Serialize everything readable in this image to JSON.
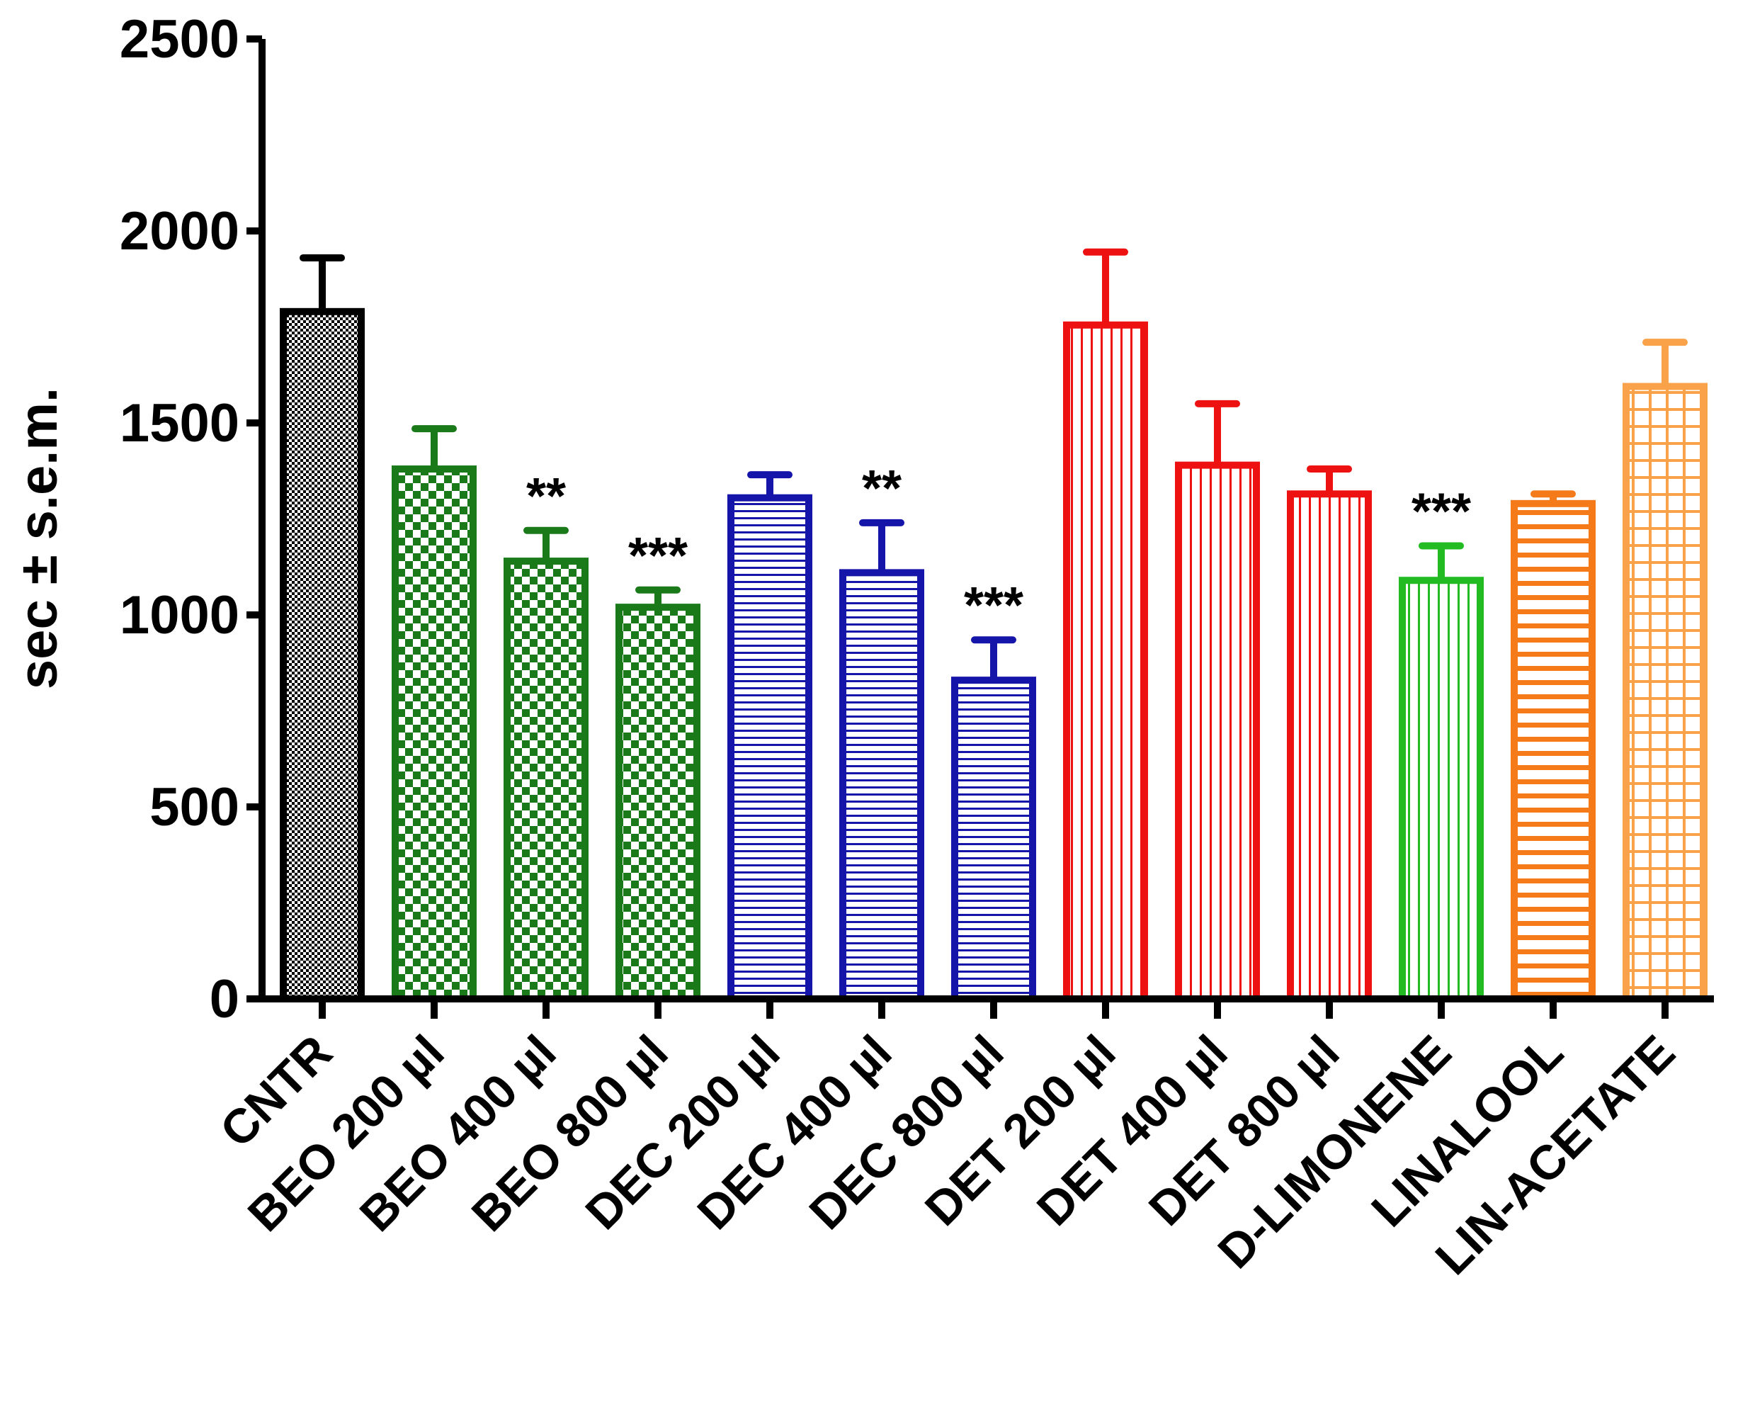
{
  "chart_data": {
    "type": "bar",
    "title": "",
    "xlabel": "",
    "ylabel": "sec ± s.e.m.",
    "ylim": [
      0,
      2500
    ],
    "yticks": [
      0,
      500,
      1000,
      1500,
      2000,
      2500
    ],
    "grid": false,
    "categories": [
      "CNTR",
      "BEO 200 µl",
      "BEO 400 µl",
      "BEO 800 µl",
      "DEC 200 µl",
      "DEC 400 µl",
      "DEC 800 µl",
      "DET 200 µl",
      "DET 400 µl",
      "DET 800 µl",
      "D-LIMONENE",
      "LINALOOL",
      "LIN-ACETATE"
    ],
    "values": [
      1790,
      1380,
      1140,
      1020,
      1305,
      1110,
      830,
      1755,
      1390,
      1315,
      1090,
      1290,
      1595
    ],
    "errors": [
      140,
      105,
      80,
      45,
      60,
      130,
      105,
      190,
      160,
      65,
      90,
      25,
      115
    ],
    "annotations": [
      "",
      "",
      "**",
      "***",
      "",
      "**",
      "***",
      "",
      "",
      "",
      "***",
      "",
      ""
    ],
    "colors": [
      "#000000",
      "#1a7a1a",
      "#1a7a1a",
      "#1a7a1a",
      "#1515aa",
      "#1515aa",
      "#1515aa",
      "#ee1111",
      "#ee1111",
      "#ee1111",
      "#22bb22",
      "#f47a1a",
      "#f9a24a"
    ],
    "patterns": [
      "dense",
      "checker",
      "checker",
      "checker",
      "hlines",
      "hlines",
      "hlines",
      "vlines",
      "vlines",
      "vlines",
      "vlines",
      "hbars",
      "grid"
    ]
  }
}
